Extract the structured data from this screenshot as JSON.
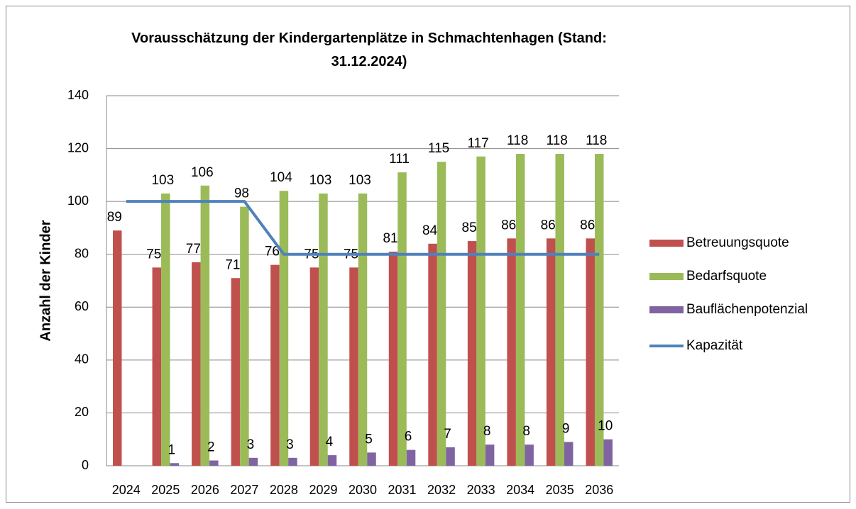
{
  "chart_data": {
    "type": "bar-line",
    "title": "Vorausschätzung der Kindergartenplätze in Schmachtenhagen (Stand: 31.12.2024)",
    "y_label": "Anzahl der Kinder",
    "categories": [
      "2024",
      "2025",
      "2026",
      "2027",
      "2028",
      "2029",
      "2030",
      "2031",
      "2032",
      "2033",
      "2034",
      "2035",
      "2036"
    ],
    "series": [
      {
        "name": "Betreuungsquote",
        "type": "bar",
        "color": "#c0504d",
        "values": [
          89,
          75,
          77,
          71,
          76,
          75,
          75,
          81,
          84,
          85,
          86,
          86,
          86
        ]
      },
      {
        "name": "Bedarfsquote",
        "type": "bar",
        "color": "#9bbb59",
        "values": [
          null,
          103,
          106,
          98,
          104,
          103,
          103,
          111,
          115,
          117,
          118,
          118,
          118
        ]
      },
      {
        "name": "Bauflächenpotenzial",
        "type": "bar",
        "color": "#8064a2",
        "values": [
          null,
          1,
          2,
          3,
          3,
          4,
          5,
          6,
          7,
          8,
          8,
          9,
          10
        ]
      },
      {
        "name": "Kapazität",
        "type": "line",
        "color": "#4f81bd",
        "values": [
          100,
          100,
          100,
          100,
          80,
          80,
          80,
          80,
          80,
          80,
          80,
          80,
          80
        ]
      }
    ],
    "ylim": [
      0,
      140
    ],
    "yticks": [
      0,
      20,
      40,
      60,
      80,
      100,
      120,
      140
    ],
    "grid": true,
    "legend": "right"
  }
}
